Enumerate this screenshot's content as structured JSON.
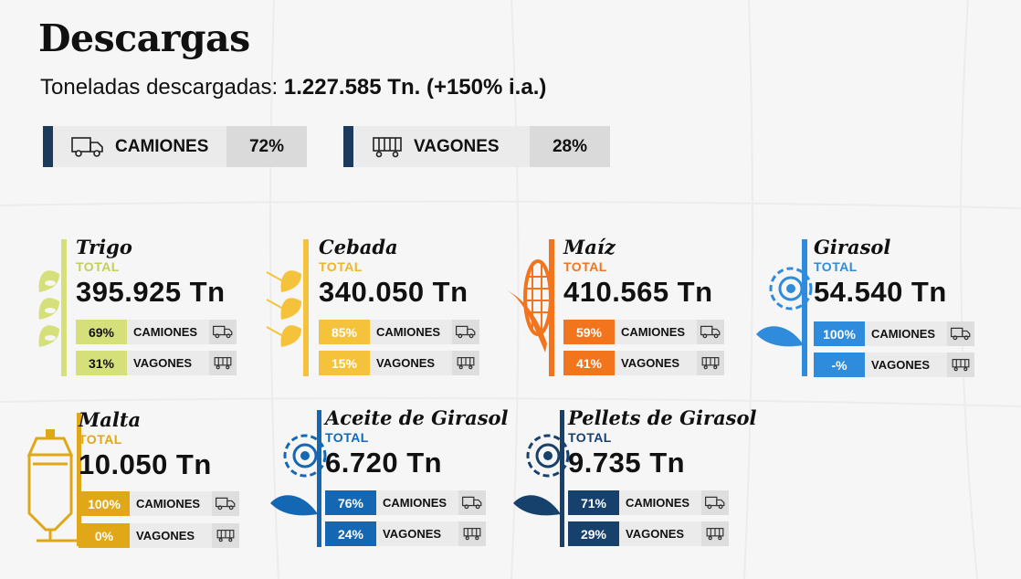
{
  "header": {
    "title": "Descargas",
    "subtitle_label": "Toneladas descargadas:",
    "subtitle_value": "1.227.585  Tn. (+150% i.a.)"
  },
  "modes": {
    "camiones": {
      "label": "CAMIONES",
      "pct": "72%",
      "icon": "truck-icon"
    },
    "vagones": {
      "label": "VAGONES",
      "pct": "28%",
      "icon": "railcar-icon"
    }
  },
  "colors": {
    "navy": "#1b3a5c",
    "trigo": "#d6e07a",
    "cebada": "#f5c33b",
    "maiz": "#f2741c",
    "girasol": "#2f8bdc",
    "malta": "#e0a818",
    "aceite": "#1468b3",
    "pellets": "#17416d"
  },
  "products": [
    {
      "name": "Trigo",
      "total_label": "TOTAL",
      "value": "395.925 Tn",
      "camiones_pct": "69%",
      "camiones_label": "CAMIONES",
      "vagones_pct": "31%",
      "vagones_label": "VAGONES",
      "icon": "wheat-icon"
    },
    {
      "name": "Cebada",
      "total_label": "TOTAL",
      "value": "340.050 Tn",
      "camiones_pct": "85%",
      "camiones_label": "CAMIONES",
      "vagones_pct": "15%",
      "vagones_label": "VAGONES",
      "icon": "barley-icon"
    },
    {
      "name": "Maíz",
      "total_label": "TOTAL",
      "value": "410.565 Tn",
      "camiones_pct": "59%",
      "camiones_label": "CAMIONES",
      "vagones_pct": "41%",
      "vagones_label": "VAGONES",
      "icon": "corn-icon"
    },
    {
      "name": "Girasol",
      "total_label": "TOTAL",
      "value": "54.540 Tn",
      "camiones_pct": "100%",
      "camiones_label": "CAMIONES",
      "vagones_pct": "-%",
      "vagones_label": "VAGONES",
      "icon": "sunflower-icon"
    },
    {
      "name": "Malta",
      "total_label": "TOTAL",
      "value": "10.050 Tn",
      "camiones_pct": "100%",
      "camiones_label": "CAMIONES",
      "vagones_pct": "0%",
      "vagones_label": "VAGONES",
      "icon": "malt-tank-icon"
    },
    {
      "name": "Aceite de Girasol",
      "total_label": "TOTAL",
      "value": "6.720 Tn",
      "camiones_pct": "76%",
      "camiones_label": "CAMIONES",
      "vagones_pct": "24%",
      "vagones_label": "VAGONES",
      "icon": "sunflower-icon"
    },
    {
      "name": "Pellets de Girasol",
      "total_label": "TOTAL",
      "value": "9.735 Tn",
      "camiones_pct": "71%",
      "camiones_label": "CAMIONES",
      "vagones_pct": "29%",
      "vagones_label": "VAGONES",
      "icon": "sunflower-icon"
    }
  ]
}
